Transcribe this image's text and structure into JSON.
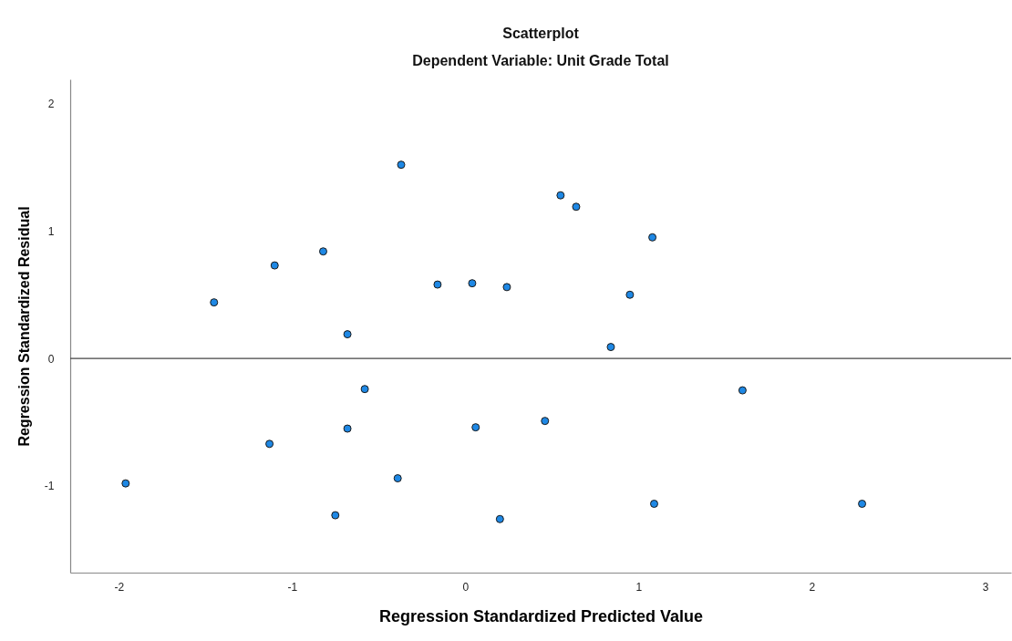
{
  "chart_data": {
    "type": "scatter",
    "title": "Scatterplot",
    "subtitle": "Dependent Variable: Unit Grade Total",
    "xlabel": "Regression Standardized Predicted Value",
    "ylabel": "Regression Standardized Residual",
    "x": [
      -0.37,
      0.55,
      0.64,
      1.08,
      -0.82,
      -1.1,
      -1.45,
      -0.16,
      0.04,
      0.24,
      0.95,
      -0.68,
      0.84,
      -0.58,
      0.06,
      0.46,
      1.6,
      -0.68,
      -1.13,
      -0.39,
      -1.96,
      -0.75,
      0.2,
      1.09,
      2.29
    ],
    "series": [
      {
        "color": "#1e88e5",
        "values": [
          1.52,
          1.28,
          1.19,
          0.95,
          0.84,
          0.73,
          0.44,
          0.58,
          0.59,
          0.56,
          0.5,
          0.19,
          0.09,
          -0.24,
          -0.54,
          -0.49,
          -0.25,
          -0.55,
          -0.67,
          -0.94,
          -0.98,
          -1.23,
          -1.26,
          -1.14,
          -1.14
        ]
      }
    ],
    "xlim": [
      -2.28,
      3.15
    ],
    "ylim": [
      -1.68,
      2.19
    ],
    "xticks": [
      -2,
      -1,
      0,
      1,
      2,
      3
    ],
    "yticks": [
      -1,
      0,
      1,
      2
    ],
    "ref_lines": [
      {
        "axis": "y",
        "value": 0
      }
    ],
    "grid": false,
    "marker": "circle"
  }
}
